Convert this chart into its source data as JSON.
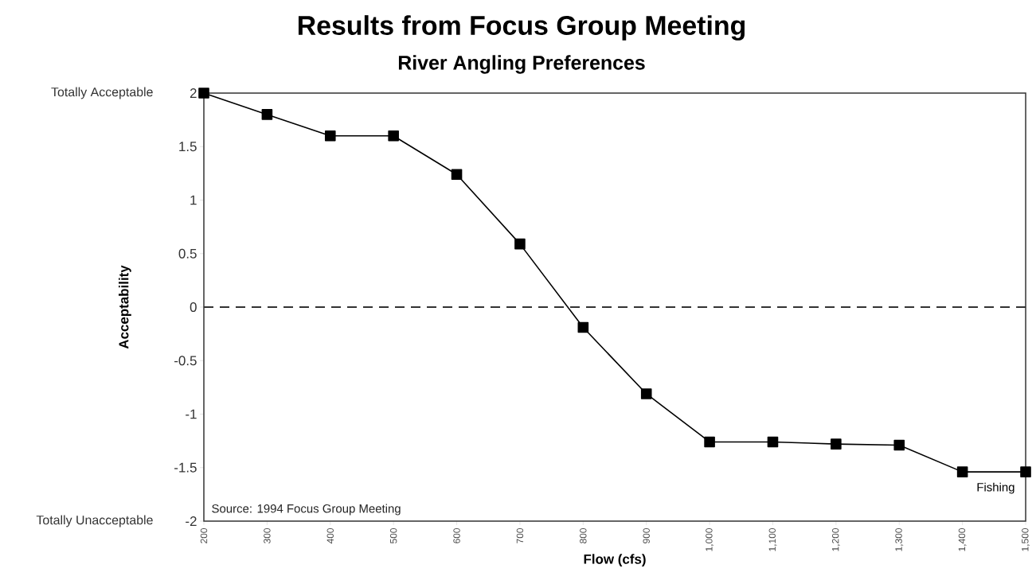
{
  "chart_data": {
    "type": "line",
    "title": "Results from Focus Group Meeting",
    "subtitle": "River Angling Preferences",
    "xlabel": "Flow (cfs)",
    "ylabel": "Acceptability",
    "x": [
      200,
      300,
      400,
      500,
      600,
      700,
      800,
      900,
      1000,
      1100,
      1200,
      1300,
      1400,
      1500
    ],
    "series": [
      {
        "name": "Fishing",
        "color": "#000000",
        "values": [
          2.0,
          1.8,
          1.6,
          1.6,
          1.24,
          0.59,
          -0.19,
          -0.81,
          -1.26,
          -1.26,
          -1.28,
          -1.29,
          -1.54,
          -1.54
        ]
      }
    ],
    "xlim": [
      200,
      1500
    ],
    "xticks": [
      200,
      300,
      400,
      500,
      600,
      700,
      800,
      900,
      {
        "value": 1000,
        "label": "1,000"
      },
      {
        "value": 1100,
        "label": "1,100"
      },
      {
        "value": 1200,
        "label": "1,200"
      },
      {
        "value": 1300,
        "label": "1,300"
      },
      {
        "value": 1400,
        "label": "1,400"
      },
      {
        "value": 1500,
        "label": "1,500"
      }
    ],
    "ylim": [
      -2,
      2
    ],
    "yticks": [
      -2,
      -1.5,
      -1,
      -0.5,
      0,
      0.5,
      1,
      1.5,
      2
    ],
    "ref_lines": [
      {
        "axis": "y",
        "value": 0,
        "line_style": "dashed",
        "color": "#333333"
      }
    ],
    "annotations": [
      "Totally Acceptable",
      "Totally Unacceptable",
      "Source: 1994 Focus Group Meeting"
    ],
    "marker": "square",
    "line_style": "solid",
    "grid": false
  }
}
